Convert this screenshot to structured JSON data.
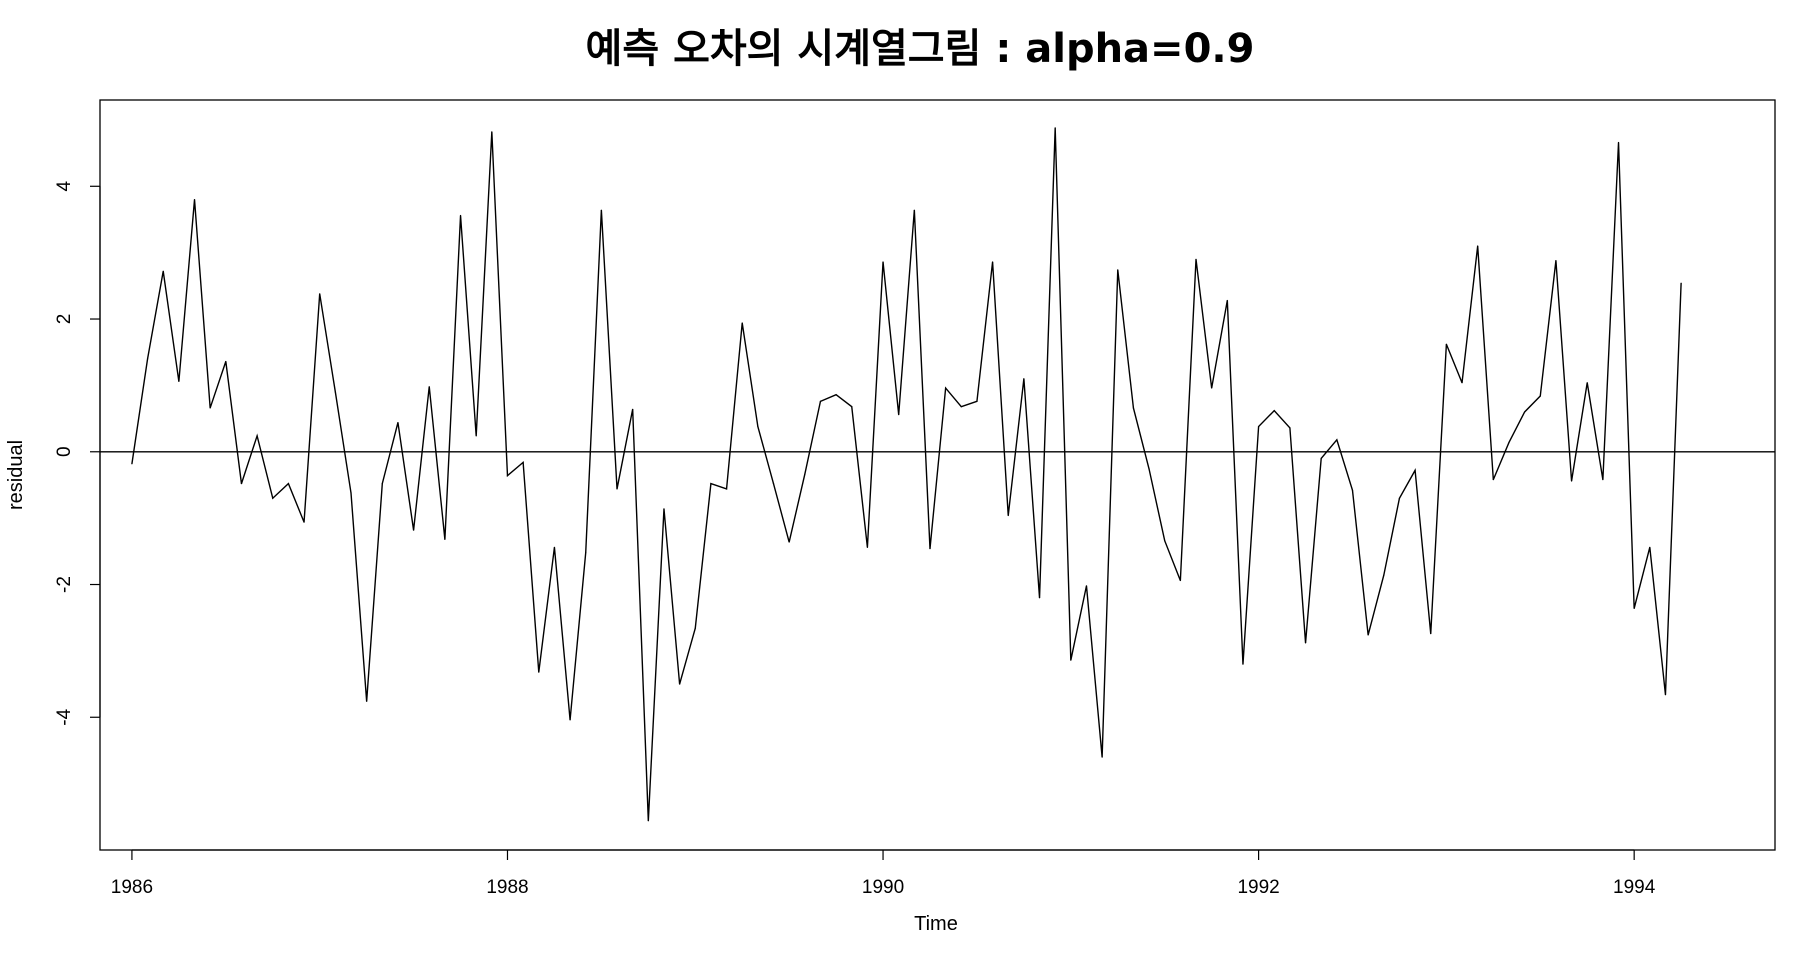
{
  "chart_data": {
    "type": "line",
    "title": "예측 오차의 시계열그림 : alpha=0.9",
    "xlabel": "Time",
    "ylabel": "residual",
    "xlim": [
      1985.83,
      1994.75
    ],
    "ylim": [
      -6.0,
      5.3
    ],
    "x_ticks": [
      1986,
      1988,
      1990,
      1992,
      1994
    ],
    "x_tick_labels": [
      "1986",
      "1988",
      "1990",
      "1992",
      "1994"
    ],
    "y_ticks": [
      -4,
      -2,
      0,
      2,
      4
    ],
    "y_tick_labels": [
      "-4",
      "-2",
      "0",
      "2",
      "4"
    ],
    "reference_line": {
      "y": 0
    },
    "grid": false,
    "box": true,
    "colors": {
      "line": "#000000",
      "background": "#ffffff"
    },
    "series": [
      {
        "start": 1986.0,
        "frequency": 12,
        "values": [
          -0.18,
          1.4,
          2.72,
          1.06,
          3.8,
          0.66,
          1.36,
          -0.48,
          0.24,
          -0.7,
          -0.48,
          -1.06,
          2.38,
          0.9,
          -0.62,
          -3.76,
          -0.48,
          0.44,
          -1.18,
          0.98,
          -1.32,
          3.56,
          0.24,
          4.82,
          -0.36,
          -0.16,
          -3.32,
          -1.44,
          -4.04,
          -1.52,
          3.64,
          -0.56,
          0.64,
          -5.56,
          -0.86,
          -3.5,
          -2.66,
          -0.48,
          -0.56,
          1.94,
          0.38,
          -0.48,
          -1.36,
          -0.34,
          0.76,
          0.86,
          0.68,
          -1.44,
          2.86,
          0.56,
          3.64,
          -1.46,
          0.96,
          0.68,
          0.76,
          2.86,
          -0.96,
          1.1,
          -2.2,
          4.88,
          -3.14,
          -2.02,
          -4.6,
          2.74,
          0.66,
          -0.26,
          -1.34,
          -1.94,
          2.9,
          0.96,
          2.28,
          -3.2,
          0.38,
          0.62,
          0.36,
          -2.88,
          -0.1,
          0.18,
          -0.58,
          -2.76,
          -1.86,
          -0.7,
          -0.28,
          -2.74,
          1.62,
          1.04,
          3.1,
          -0.42,
          0.14,
          0.6,
          0.84,
          2.88,
          -0.44,
          1.04,
          -0.42,
          4.66,
          -2.36,
          -1.44,
          -3.66,
          2.54
        ]
      }
    ]
  }
}
